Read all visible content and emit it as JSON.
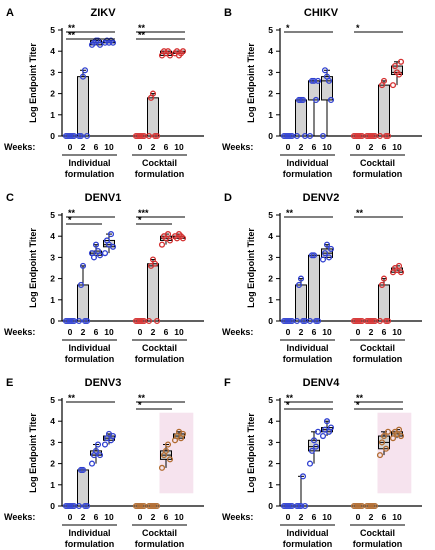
{
  "figure": {
    "weeks_label": "Weeks:",
    "group_labels": [
      [
        "Individual",
        "formulation"
      ],
      [
        "Cocktail",
        "formulation"
      ]
    ]
  },
  "colors": {
    "individual": "#2e3fd0",
    "cocktail": "#d42f2f",
    "cocktail_brown": "#b06a2e",
    "box_fill": "#d3d3d3",
    "pink_fill": "#f6e3ee"
  },
  "chart_data": [
    {
      "panel": "A",
      "title": "ZIKV",
      "type": "box-scatter",
      "ylabel": "Log Endpoint Titer",
      "ylim": [
        0,
        5
      ],
      "yticks": [
        0,
        1,
        2,
        3,
        4,
        5
      ],
      "categories": [
        "0",
        "2",
        "6",
        "10"
      ],
      "groups": [
        {
          "name": "Individual formulation",
          "color": "individual",
          "series": [
            {
              "week": "0",
              "values": [
                0,
                0,
                0,
                0,
                0
              ]
            },
            {
              "week": "2",
              "values": [
                0,
                0,
                2.8,
                3.1,
                0
              ]
            },
            {
              "week": "6",
              "values": [
                4.3,
                4.4,
                4.5,
                4.5,
                4.3
              ]
            },
            {
              "week": "10",
              "values": [
                4.4,
                4.5,
                4.4,
                4.5,
                4.4
              ]
            }
          ]
        },
        {
          "name": "Cocktail formulation",
          "color": "cocktail",
          "series": [
            {
              "week": "0",
              "values": [
                0,
                0,
                0,
                0,
                0
              ]
            },
            {
              "week": "2",
              "values": [
                0,
                1.8,
                2.0,
                0,
                0
              ]
            },
            {
              "week": "6",
              "values": [
                3.8,
                4.0,
                3.9,
                4.0,
                3.8
              ]
            },
            {
              "week": "10",
              "values": [
                3.9,
                4.0,
                3.8,
                3.9,
                4.0
              ]
            }
          ]
        }
      ],
      "significance": [
        {
          "group": 0,
          "label": "**",
          "row": 0,
          "span": [
            0,
            3
          ]
        },
        {
          "group": 0,
          "label": "**",
          "row": 1,
          "span": [
            0,
            3
          ]
        },
        {
          "group": 1,
          "label": "**",
          "row": 0,
          "span": [
            0,
            3
          ]
        },
        {
          "group": 1,
          "label": "**",
          "row": 1,
          "span": [
            0,
            3
          ]
        }
      ]
    },
    {
      "panel": "B",
      "title": "CHIKV",
      "type": "box-scatter",
      "ylabel": "Log Endpoint Titer",
      "ylim": [
        0,
        5
      ],
      "yticks": [
        0,
        1,
        2,
        3,
        4,
        5
      ],
      "categories": [
        "0",
        "2",
        "6",
        "10"
      ],
      "groups": [
        {
          "name": "Individual formulation",
          "color": "individual",
          "series": [
            {
              "week": "0",
              "values": [
                0,
                0,
                0,
                0,
                0
              ]
            },
            {
              "week": "2",
              "values": [
                0,
                1.7,
                1.7,
                1.7,
                0
              ]
            },
            {
              "week": "6",
              "values": [
                0,
                2.6,
                2.6,
                1.7,
                2.6
              ]
            },
            {
              "week": "10",
              "values": [
                0,
                3.1,
                2.8,
                2.6,
                1.7
              ]
            }
          ]
        },
        {
          "name": "Cocktail formulation",
          "color": "cocktail",
          "series": [
            {
              "week": "0",
              "values": [
                0,
                0,
                0,
                0,
                0
              ]
            },
            {
              "week": "2",
              "values": [
                0,
                0,
                0,
                0,
                0
              ]
            },
            {
              "week": "6",
              "values": [
                0,
                2.4,
                2.6,
                0,
                0
              ]
            },
            {
              "week": "10",
              "values": [
                2.4,
                3.3,
                3.0,
                2.9,
                3.5
              ]
            }
          ]
        }
      ],
      "significance": [
        {
          "group": 0,
          "label": "*",
          "row": 0,
          "span": [
            0,
            3
          ]
        },
        {
          "group": 1,
          "label": "*",
          "row": 0,
          "span": [
            0,
            3
          ]
        }
      ]
    },
    {
      "panel": "C",
      "title": "DENV1",
      "type": "box-scatter",
      "ylabel": "Log Endpoint Titer",
      "ylim": [
        0,
        5
      ],
      "yticks": [
        0,
        1,
        2,
        3,
        4,
        5
      ],
      "categories": [
        "0",
        "2",
        "6",
        "10"
      ],
      "groups": [
        {
          "name": "Individual formulation",
          "color": "individual",
          "series": [
            {
              "week": "0",
              "values": [
                0,
                0,
                0,
                0,
                0
              ]
            },
            {
              "week": "2",
              "values": [
                0,
                1.7,
                2.6,
                0,
                0
              ]
            },
            {
              "week": "6",
              "values": [
                3.2,
                3.0,
                3.6,
                3.3,
                3.1
              ]
            },
            {
              "week": "10",
              "values": [
                3.2,
                3.8,
                3.6,
                4.1,
                3.5
              ]
            }
          ]
        },
        {
          "name": "Cocktail formulation",
          "color": "cocktail",
          "series": [
            {
              "week": "0",
              "values": [
                0,
                0,
                0,
                0,
                0
              ]
            },
            {
              "week": "2",
              "values": [
                0,
                2.6,
                2.9,
                2.7,
                0
              ]
            },
            {
              "week": "6",
              "values": [
                3.6,
                4.0,
                3.9,
                4.1,
                3.8
              ]
            },
            {
              "week": "10",
              "values": [
                4.0,
                3.9,
                4.1,
                4.0,
                3.9
              ]
            }
          ]
        }
      ],
      "significance": [
        {
          "group": 0,
          "label": "**",
          "row": 0,
          "span": [
            0,
            3
          ]
        },
        {
          "group": 0,
          "label": "*",
          "row": 1,
          "span": [
            0,
            2
          ]
        },
        {
          "group": 1,
          "label": "***",
          "row": 0,
          "span": [
            0,
            3
          ]
        },
        {
          "group": 1,
          "label": "*",
          "row": 1,
          "span": [
            0,
            2
          ]
        }
      ]
    },
    {
      "panel": "D",
      "title": "DENV2",
      "type": "box-scatter",
      "ylabel": "Log Endpoint Titer",
      "ylim": [
        0,
        5
      ],
      "yticks": [
        0,
        1,
        2,
        3,
        4,
        5
      ],
      "categories": [
        "0",
        "2",
        "6",
        "10"
      ],
      "groups": [
        {
          "name": "Individual formulation",
          "color": "individual",
          "series": [
            {
              "week": "0",
              "values": [
                0,
                0,
                0,
                0,
                0
              ]
            },
            {
              "week": "2",
              "values": [
                0,
                1.7,
                2.0,
                0,
                0
              ]
            },
            {
              "week": "6",
              "values": [
                0,
                3.1,
                3.1,
                0,
                0
              ]
            },
            {
              "week": "10",
              "values": [
                2.9,
                3.2,
                3.6,
                3.0,
                3.4
              ]
            }
          ]
        },
        {
          "name": "Cocktail formulation",
          "color": "cocktail",
          "series": [
            {
              "week": "0",
              "values": [
                0,
                0,
                0,
                0,
                0
              ]
            },
            {
              "week": "2",
              "values": [
                0,
                0,
                0,
                0,
                0
              ]
            },
            {
              "week": "6",
              "values": [
                0,
                1.7,
                2.0,
                0,
                0
              ]
            },
            {
              "week": "10",
              "values": [
                2.3,
                2.5,
                2.4,
                2.6,
                2.3
              ]
            }
          ]
        }
      ],
      "significance": [
        {
          "group": 0,
          "label": "**",
          "row": 0,
          "span": [
            0,
            3
          ]
        },
        {
          "group": 1,
          "label": "**",
          "row": 0,
          "span": [
            0,
            3
          ]
        }
      ]
    },
    {
      "panel": "E",
      "title": "DENV3",
      "type": "box-scatter",
      "ylabel": "Log Endpoint Titer",
      "ylim": [
        0,
        5
      ],
      "yticks": [
        0,
        1,
        2,
        3,
        4,
        5
      ],
      "categories": [
        "0",
        "2",
        "6",
        "10"
      ],
      "groups": [
        {
          "name": "Individual formulation",
          "color": "individual",
          "series": [
            {
              "week": "0",
              "values": [
                0,
                0,
                0,
                0,
                0
              ]
            },
            {
              "week": "2",
              "values": [
                0,
                1.7,
                1.7,
                0,
                0
              ]
            },
            {
              "week": "6",
              "values": [
                2.0,
                2.4,
                2.6,
                2.9,
                2.4
              ]
            },
            {
              "week": "10",
              "values": [
                2.9,
                3.2,
                3.4,
                3.1,
                3.3
              ]
            }
          ]
        },
        {
          "name": "Cocktail formulation",
          "color": "cocktail_brown",
          "shaded": true,
          "series": [
            {
              "week": "0",
              "values": [
                0,
                0,
                0,
                0,
                0
              ]
            },
            {
              "week": "2",
              "values": [
                0,
                0,
                0,
                0,
                0
              ]
            },
            {
              "week": "6",
              "values": [
                1.8,
                2.4,
                2.6,
                2.9,
                2.2
              ]
            },
            {
              "week": "10",
              "values": [
                3.1,
                3.3,
                3.5,
                3.2,
                3.4
              ]
            }
          ]
        }
      ],
      "significance": [
        {
          "group": 0,
          "label": "**",
          "row": 0,
          "span": [
            0,
            3
          ]
        },
        {
          "group": 1,
          "label": "**",
          "row": 0,
          "span": [
            0,
            3
          ]
        },
        {
          "group": 1,
          "label": "*",
          "row": 1,
          "span": [
            0,
            2
          ]
        }
      ]
    },
    {
      "panel": "F",
      "title": "DENV4",
      "type": "box-scatter",
      "ylabel": "Log Endpoint Titer",
      "ylim": [
        0,
        5
      ],
      "yticks": [
        0,
        1,
        2,
        3,
        4,
        5
      ],
      "categories": [
        "0",
        "2",
        "6",
        "10"
      ],
      "groups": [
        {
          "name": "Individual formulation",
          "color": "individual",
          "series": [
            {
              "week": "0",
              "values": [
                0,
                0,
                0,
                0,
                0
              ]
            },
            {
              "week": "2",
              "values": [
                0,
                0,
                0,
                1.4,
                0
              ]
            },
            {
              "week": "6",
              "values": [
                2.0,
                2.6,
                3.1,
                2.8,
                3.5
              ]
            },
            {
              "week": "10",
              "values": [
                3.3,
                3.6,
                4.0,
                3.5,
                3.7
              ]
            }
          ]
        },
        {
          "name": "Cocktail formulation",
          "color": "cocktail_brown",
          "shaded": true,
          "series": [
            {
              "week": "0",
              "values": [
                0,
                0,
                0,
                0,
                0
              ]
            },
            {
              "week": "2",
              "values": [
                0,
                0,
                0,
                0,
                0
              ]
            },
            {
              "week": "6",
              "values": [
                2.4,
                3.0,
                3.3,
                2.7,
                3.5
              ]
            },
            {
              "week": "10",
              "values": [
                3.2,
                3.5,
                3.4,
                3.6,
                3.3
              ]
            }
          ]
        }
      ],
      "significance": [
        {
          "group": 0,
          "label": "**",
          "row": 0,
          "span": [
            0,
            3
          ]
        },
        {
          "group": 0,
          "label": "*",
          "row": 1,
          "span": [
            0,
            3
          ]
        },
        {
          "group": 1,
          "label": "**",
          "row": 0,
          "span": [
            0,
            3
          ]
        },
        {
          "group": 1,
          "label": "*",
          "row": 1,
          "span": [
            0,
            3
          ]
        }
      ]
    }
  ]
}
